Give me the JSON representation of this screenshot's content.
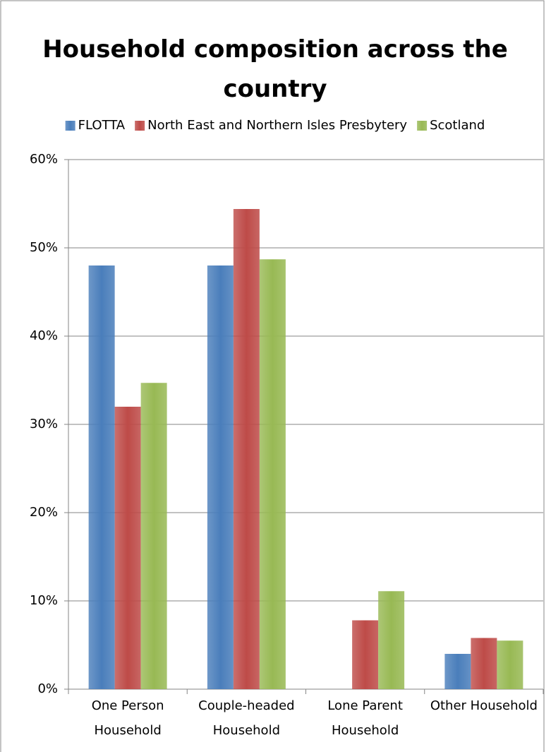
{
  "chart_data": {
    "type": "bar",
    "title": "Household composition across the country",
    "categories": [
      "One Person Household",
      "Couple-headed Household",
      "Lone Parent Household",
      "Other Household"
    ],
    "series": [
      {
        "name": "FLOTTA",
        "color": "#4a7ebb",
        "values": [
          48,
          48,
          0,
          4
        ]
      },
      {
        "name": "North East and Northern Isles Presbytery",
        "color": "#be4b48",
        "values": [
          32,
          54.4,
          7.8,
          5.8
        ]
      },
      {
        "name": "Scotland",
        "color": "#98b954",
        "values": [
          34.7,
          48.7,
          11.1,
          5.5
        ]
      }
    ],
    "ylim": [
      0,
      60
    ],
    "yticks": [
      {
        "value": 0,
        "label": "0%"
      },
      {
        "value": 10,
        "label": "10%"
      },
      {
        "value": 20,
        "label": "20%"
      },
      {
        "value": 30,
        "label": "30%"
      },
      {
        "value": 40,
        "label": "40%"
      },
      {
        "value": 50,
        "label": "50%"
      },
      {
        "value": 60,
        "label": "60%"
      }
    ],
    "grid": true,
    "legend": "top"
  }
}
